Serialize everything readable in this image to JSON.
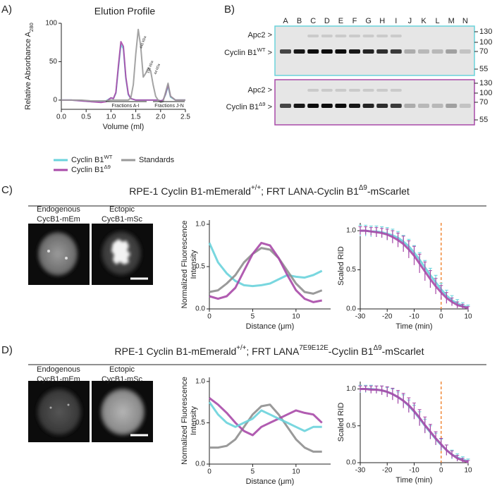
{
  "panel_labels": [
    "A)",
    "B)",
    "C)",
    "D)"
  ],
  "gel": {
    "lanes": [
      "A",
      "B",
      "C",
      "D",
      "E",
      "F",
      "G",
      "H",
      "I",
      "J",
      "K",
      "L",
      "M",
      "N"
    ],
    "markers_top": [
      "130",
      "100",
      "70",
      "55"
    ],
    "markers_bottom": [
      "130",
      "100",
      "70",
      "55"
    ],
    "apc2_label": "Apc2 >",
    "cyclin_wt": [
      "Cyclin B1",
      "WT",
      " >"
    ],
    "cyclin_d9": [
      "Cyclin B1",
      "Δ9",
      " >"
    ]
  },
  "panel_c": {
    "title_parts": [
      "RPE-1 Cyclin B1-mEmerald",
      "+/+",
      "; FRT LANA-Cyclin B1",
      "Δ9",
      "-mScarlet"
    ],
    "image_labels": [
      [
        "Endogenous",
        "CycB1-mEm"
      ],
      [
        "Ectopic",
        "CycB1-mSc"
      ]
    ]
  },
  "panel_d": {
    "title_parts": [
      "RPE-1 Cyclin B1-mEmerald",
      "+/+",
      "; FRT LANA",
      "7E9E12E",
      "-Cyclin B1",
      "Δ9",
      "-mScarlet"
    ],
    "image_labels": [
      [
        "Endogenous",
        "CycB1-mEm"
      ],
      [
        "Ectopic",
        "CycB1-mSc"
      ]
    ]
  },
  "chart_data": [
    {
      "type": "line",
      "title": "Elution Profile",
      "xlabel": "Volume (ml)",
      "ylabel": "Relative Absorbance A",
      "ylabel_sub": "280",
      "x": [
        0,
        0.2,
        0.4,
        0.6,
        0.8,
        0.9,
        1.0,
        1.05,
        1.1,
        1.15,
        1.2,
        1.25,
        1.3,
        1.35,
        1.4,
        1.45,
        1.5,
        1.55,
        1.6,
        1.65,
        1.7,
        1.75,
        1.8,
        1.85,
        1.9,
        1.95,
        2.0,
        2.05,
        2.1,
        2.15,
        2.2,
        2.3,
        2.4,
        2.5
      ],
      "xlim": [
        0,
        2.5
      ],
      "xticks": [
        {
          "value": 0,
          "label": "0.0"
        },
        0.5,
        {
          "value": 1,
          "label": "1.0"
        },
        1.5,
        {
          "value": 2,
          "label": "2.0"
        },
        2.5
      ],
      "ylim": [
        -12,
        100
      ],
      "yticks": [
        0,
        50,
        100
      ],
      "annotations": [
        "440 kDa",
        "158 kDa",
        "44 kDa",
        "Fractions A-I",
        "Fractions J-N"
      ],
      "series": [
        {
          "name": "Cyclin B1",
          "name_sup": "WT",
          "color": "#6ad3dc",
          "values": [
            0,
            0,
            -1,
            -2,
            -2,
            -1,
            3,
            2,
            9,
            42,
            72,
            67,
            28,
            7,
            2,
            1,
            0,
            0,
            0,
            0,
            0,
            0,
            0,
            0,
            0,
            0,
            -1,
            0,
            7,
            18,
            4,
            0,
            0,
            0
          ]
        },
        {
          "name": "Cyclin B1",
          "name_sup": "Δ9",
          "color": "#a94aa8",
          "values": [
            0,
            0,
            -1,
            -2,
            -3,
            -2,
            3,
            2,
            10,
            45,
            76,
            70,
            30,
            8,
            2,
            1,
            0,
            0,
            0,
            0,
            0,
            0,
            0,
            0,
            0,
            0,
            -1,
            0,
            8,
            20,
            5,
            0,
            0,
            0
          ]
        },
        {
          "name": "Standards",
          "color": "#9a9a9a",
          "values": [
            0,
            0,
            0,
            -1,
            -1,
            -1,
            0,
            0,
            0,
            0,
            0,
            0,
            0,
            0,
            3,
            20,
            60,
            92,
            70,
            30,
            35,
            42,
            38,
            20,
            5,
            0,
            -3,
            -2,
            10,
            22,
            5,
            0,
            0,
            0
          ]
        }
      ]
    },
    {
      "type": "line",
      "xlabel": "Distance (μm)",
      "ylabel": [
        "Normalized Fluorescence",
        "Intensity"
      ],
      "x": [
        0,
        1,
        2,
        3,
        4,
        5,
        6,
        7,
        8,
        9,
        10,
        11,
        12,
        13
      ],
      "xlim": [
        0,
        14
      ],
      "xticks": [
        0,
        5,
        10
      ],
      "ylim": [
        0,
        1.05
      ],
      "yticks": [
        {
          "value": 0,
          "label": "0.0"
        },
        0.5,
        {
          "value": 1,
          "label": "1.0"
        }
      ],
      "series": [
        {
          "color": "#6ad3dc",
          "values": [
            0.78,
            0.55,
            0.42,
            0.33,
            0.28,
            0.27,
            0.28,
            0.3,
            0.35,
            0.4,
            0.38,
            0.37,
            0.4,
            0.45
          ]
        },
        {
          "color": "#8f8f8f",
          "values": [
            0.2,
            0.22,
            0.3,
            0.4,
            0.55,
            0.65,
            0.72,
            0.7,
            0.6,
            0.45,
            0.3,
            0.2,
            0.18,
            0.22
          ]
        },
        {
          "color": "#a94aa8",
          "values": [
            0.15,
            0.12,
            0.15,
            0.25,
            0.45,
            0.65,
            0.78,
            0.75,
            0.6,
            0.4,
            0.22,
            0.12,
            0.08,
            0.1
          ]
        }
      ]
    },
    {
      "type": "line",
      "xlabel": "Time (min)",
      "ylabel": "Scaled RID",
      "x": [
        -30,
        -28,
        -26,
        -24,
        -22,
        -20,
        -18,
        -16,
        -14,
        -12,
        -10,
        -8,
        -6,
        -4,
        -2,
        0,
        2,
        4,
        6,
        8,
        10
      ],
      "xlim": [
        -30,
        10
      ],
      "xticks": [
        -30,
        -20,
        -10,
        0,
        10
      ],
      "ylim": [
        0,
        1.1
      ],
      "yticks": [
        {
          "value": 0,
          "label": "0.0"
        },
        0.5,
        {
          "value": 1,
          "label": "1.0"
        }
      ],
      "vline": 0,
      "vline_color": "#f08a3a",
      "series": [
        {
          "color": "#6ad3dc",
          "values": [
            1.0,
            1.0,
            0.99,
            0.99,
            0.98,
            0.96,
            0.94,
            0.91,
            0.86,
            0.8,
            0.72,
            0.63,
            0.53,
            0.43,
            0.34,
            0.25,
            0.17,
            0.11,
            0.07,
            0.04,
            0.02
          ],
          "errors": [
            0.07,
            0.07,
            0.07,
            0.07,
            0.07,
            0.08,
            0.08,
            0.08,
            0.08,
            0.09,
            0.09,
            0.09,
            0.09,
            0.09,
            0.09,
            0.08,
            0.07,
            0.06,
            0.05,
            0.04,
            0.03
          ]
        },
        {
          "color": "#a94aa8",
          "values": [
            1.0,
            1.0,
            0.99,
            0.98,
            0.97,
            0.95,
            0.92,
            0.88,
            0.83,
            0.76,
            0.68,
            0.58,
            0.48,
            0.38,
            0.29,
            0.21,
            0.14,
            0.09,
            0.05,
            0.03,
            0.01
          ],
          "errors": [
            0.05,
            0.05,
            0.05,
            0.06,
            0.06,
            0.07,
            0.08,
            0.09,
            0.1,
            0.11,
            0.12,
            0.12,
            0.12,
            0.11,
            0.1,
            0.09,
            0.07,
            0.05,
            0.04,
            0.03,
            0.02
          ]
        }
      ]
    },
    {
      "type": "line",
      "xlabel": "Distance (μm)",
      "ylabel": [
        "Normalized Fluorescence",
        "Intensity"
      ],
      "x": [
        0,
        1,
        2,
        3,
        4,
        5,
        6,
        7,
        8,
        9,
        10,
        11,
        12,
        13
      ],
      "xlim": [
        0,
        14
      ],
      "xticks": [
        0,
        5,
        10
      ],
      "ylim": [
        0,
        1.05
      ],
      "yticks": [
        {
          "value": 0,
          "label": "0.0"
        },
        0.5,
        {
          "value": 1,
          "label": "1.0"
        }
      ],
      "series": [
        {
          "color": "#8f8f8f",
          "values": [
            0.2,
            0.2,
            0.22,
            0.3,
            0.45,
            0.6,
            0.7,
            0.72,
            0.6,
            0.45,
            0.3,
            0.2,
            0.15,
            0.15
          ]
        },
        {
          "color": "#a94aa8",
          "values": [
            0.8,
            0.72,
            0.62,
            0.5,
            0.4,
            0.35,
            0.45,
            0.5,
            0.55,
            0.6,
            0.65,
            0.62,
            0.6,
            0.5
          ]
        },
        {
          "color": "#6ad3dc",
          "values": [
            0.75,
            0.6,
            0.5,
            0.45,
            0.5,
            0.55,
            0.65,
            0.6,
            0.55,
            0.5,
            0.45,
            0.4,
            0.45,
            0.45
          ]
        }
      ]
    },
    {
      "type": "line",
      "xlabel": "Time (min)",
      "ylabel": "Scaled RID",
      "x": [
        -30,
        -28,
        -26,
        -24,
        -22,
        -20,
        -18,
        -16,
        -14,
        -12,
        -10,
        -8,
        -6,
        -4,
        -2,
        0,
        2,
        4,
        6,
        8,
        10
      ],
      "xlim": [
        -30,
        10
      ],
      "xticks": [
        -30,
        -20,
        -10,
        0,
        10
      ],
      "ylim": [
        0,
        1.1
      ],
      "yticks": [
        {
          "value": 0,
          "label": "0.0"
        },
        0.5,
        {
          "value": 1,
          "label": "1.0"
        }
      ],
      "vline": 0,
      "vline_color": "#f08a3a",
      "series": [
        {
          "color": "#6ad3dc",
          "values": [
            1.0,
            1.0,
            1.0,
            0.99,
            0.98,
            0.96,
            0.93,
            0.89,
            0.84,
            0.77,
            0.69,
            0.6,
            0.5,
            0.41,
            0.32,
            0.24,
            0.17,
            0.11,
            0.07,
            0.04,
            0.02
          ],
          "errors": [
            0.05,
            0.05,
            0.05,
            0.05,
            0.06,
            0.06,
            0.07,
            0.07,
            0.08,
            0.08,
            0.09,
            0.09,
            0.09,
            0.09,
            0.08,
            0.08,
            0.07,
            0.06,
            0.05,
            0.04,
            0.03
          ]
        },
        {
          "color": "#a94aa8",
          "values": [
            1.0,
            1.0,
            0.99,
            0.99,
            0.98,
            0.96,
            0.93,
            0.89,
            0.84,
            0.78,
            0.7,
            0.61,
            0.51,
            0.42,
            0.33,
            0.25,
            0.17,
            0.11,
            0.06,
            0.03,
            0.01
          ],
          "errors": [
            0.04,
            0.04,
            0.05,
            0.05,
            0.06,
            0.07,
            0.08,
            0.09,
            0.1,
            0.1,
            0.11,
            0.11,
            0.11,
            0.1,
            0.09,
            0.08,
            0.07,
            0.05,
            0.04,
            0.03,
            0.02
          ]
        }
      ]
    }
  ]
}
